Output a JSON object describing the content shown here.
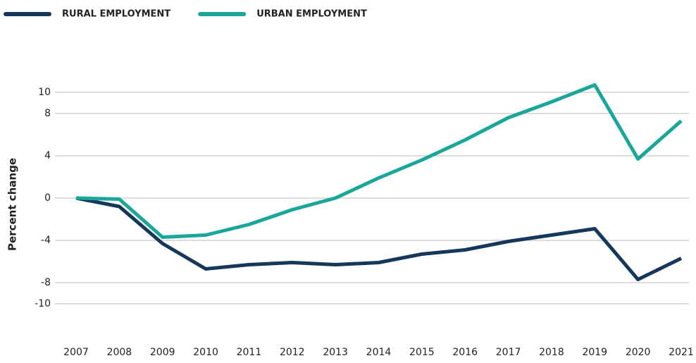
{
  "chart_data": {
    "type": "line",
    "ylabel": "Percent change",
    "x": [
      2007,
      2008,
      2009,
      2010,
      2011,
      2012,
      2013,
      2014,
      2015,
      2016,
      2017,
      2018,
      2019,
      2020,
      2021
    ],
    "series": [
      {
        "name": "RURAL EMPLOYMENT",
        "color": "#14375a",
        "values": [
          0,
          -0.8,
          -4.3,
          -6.7,
          -6.3,
          -6.1,
          -6.3,
          -6.1,
          -5.3,
          -4.9,
          -4.1,
          -3.5,
          -2.9,
          -7.7,
          -5.7
        ]
      },
      {
        "name": "URBAN EMPLOYMENT",
        "color": "#1aa79a",
        "values": [
          0,
          -0.1,
          -3.7,
          -3.5,
          -2.5,
          -1.1,
          0,
          1.9,
          3.6,
          5.5,
          7.6,
          9.1,
          10.7,
          3.7,
          7.3
        ]
      }
    ],
    "ylim": [
      -12,
      12
    ],
    "yticks": [
      10,
      8,
      4,
      0,
      -4,
      -8,
      -10
    ],
    "xlim": [
      2007,
      2021
    ],
    "xticks": [
      2007,
      2008,
      2009,
      2010,
      2011,
      2012,
      2013,
      2014,
      2015,
      2016,
      2017,
      2018,
      2019,
      2020,
      2021
    ],
    "grid": true,
    "legend": "top-left"
  }
}
